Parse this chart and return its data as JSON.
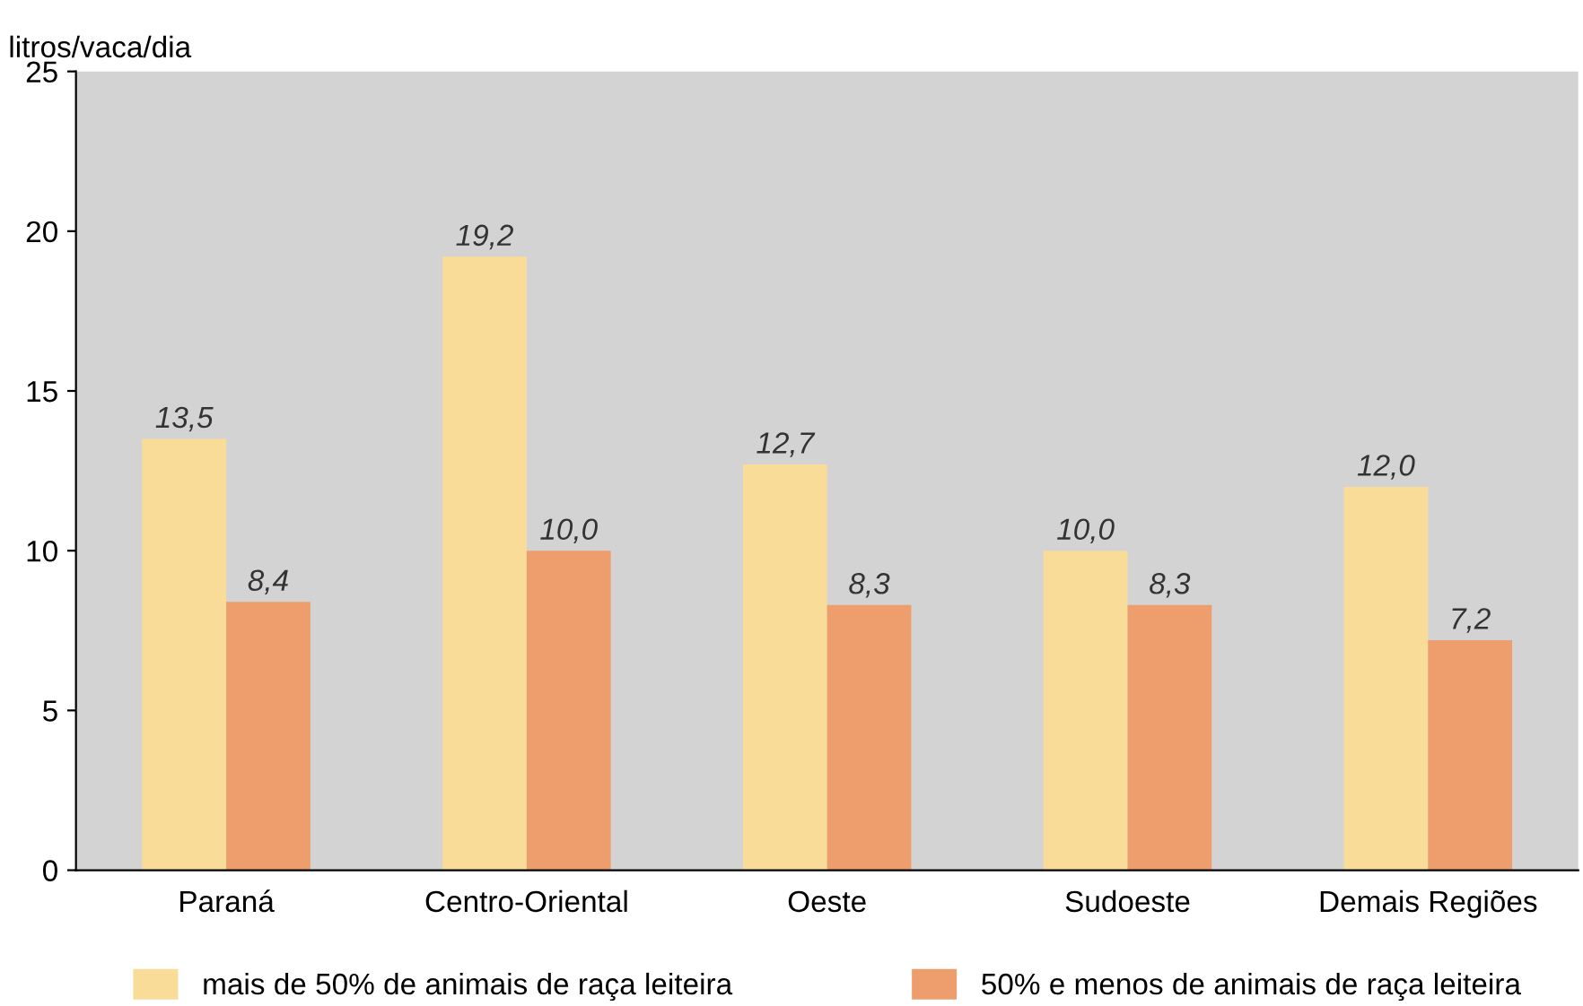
{
  "chart_data": {
    "type": "bar",
    "ylabel": "litros/vaca/dia",
    "categories": [
      "Paraná",
      "Centro-Oriental",
      "Oeste",
      "Sudoeste",
      "Demais Regiões"
    ],
    "series": [
      {
        "name": "mais de 50% de animais de raça leiteira",
        "color": "#f9dc98",
        "values": [
          13.5,
          19.2,
          12.7,
          10.0,
          12.0
        ],
        "value_labels": [
          "13,5",
          "19,2",
          "12,7",
          "10,0",
          "12,0"
        ]
      },
      {
        "name": "50% e menos de animais de raça leiteira",
        "color": "#ee9e6c",
        "values": [
          8.4,
          10.0,
          8.3,
          8.3,
          7.2
        ],
        "value_labels": [
          "8,4",
          "10,0",
          "8,3",
          "8,3",
          "7,2"
        ]
      }
    ],
    "ylim": [
      0,
      25
    ],
    "yticks": [
      0,
      5,
      10,
      15,
      20,
      25
    ],
    "grid": false,
    "legend": "bottom"
  }
}
